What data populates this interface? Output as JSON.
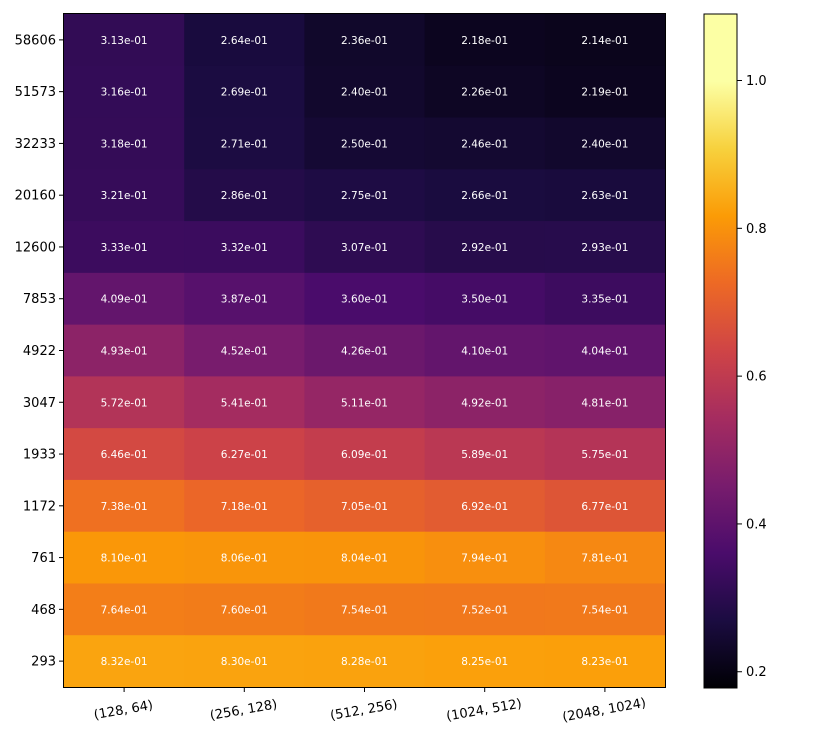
{
  "chart_data": {
    "type": "heatmap",
    "colormap": "inferno",
    "x_categories": [
      "(128, 64)",
      "(256, 128)",
      "(512, 256)",
      "(1024, 512)",
      "(2048, 1024)"
    ],
    "y_categories": [
      "58606",
      "51573",
      "32233",
      "20160",
      "12600",
      "7853",
      "4922",
      "3047",
      "1933",
      "1172",
      "761",
      "468",
      "293"
    ],
    "values": [
      [
        0.313,
        0.264,
        0.236,
        0.218,
        0.214
      ],
      [
        0.316,
        0.269,
        0.24,
        0.226,
        0.219
      ],
      [
        0.318,
        0.271,
        0.25,
        0.246,
        0.24
      ],
      [
        0.321,
        0.286,
        0.275,
        0.266,
        0.263
      ],
      [
        0.333,
        0.332,
        0.307,
        0.292,
        0.293
      ],
      [
        0.409,
        0.387,
        0.36,
        0.35,
        0.335
      ],
      [
        0.493,
        0.452,
        0.426,
        0.41,
        0.404
      ],
      [
        0.572,
        0.541,
        0.511,
        0.492,
        0.481
      ],
      [
        0.646,
        0.627,
        0.609,
        0.589,
        0.575
      ],
      [
        0.738,
        0.718,
        0.705,
        0.692,
        0.677
      ],
      [
        0.81,
        0.806,
        0.804,
        0.794,
        0.781
      ],
      [
        0.764,
        0.76,
        0.754,
        0.752,
        0.754
      ],
      [
        0.832,
        0.83,
        0.828,
        0.825,
        0.823
      ]
    ],
    "labels": [
      [
        "3.13e-01",
        "2.64e-01",
        "2.36e-01",
        "2.18e-01",
        "2.14e-01"
      ],
      [
        "3.16e-01",
        "2.69e-01",
        "2.40e-01",
        "2.26e-01",
        "2.19e-01"
      ],
      [
        "3.18e-01",
        "2.71e-01",
        "2.50e-01",
        "2.46e-01",
        "2.40e-01"
      ],
      [
        "3.21e-01",
        "2.86e-01",
        "2.75e-01",
        "2.66e-01",
        "2.63e-01"
      ],
      [
        "3.33e-01",
        "3.32e-01",
        "3.07e-01",
        "2.92e-01",
        "2.93e-01"
      ],
      [
        "4.09e-01",
        "3.87e-01",
        "3.60e-01",
        "3.50e-01",
        "3.35e-01"
      ],
      [
        "4.93e-01",
        "4.52e-01",
        "4.26e-01",
        "4.10e-01",
        "4.04e-01"
      ],
      [
        "5.72e-01",
        "5.41e-01",
        "5.11e-01",
        "4.92e-01",
        "4.81e-01"
      ],
      [
        "6.46e-01",
        "6.27e-01",
        "6.09e-01",
        "5.89e-01",
        "5.75e-01"
      ],
      [
        "7.38e-01",
        "7.18e-01",
        "7.05e-01",
        "6.92e-01",
        "6.77e-01"
      ],
      [
        "8.10e-01",
        "8.06e-01",
        "8.04e-01",
        "7.94e-01",
        "7.81e-01"
      ],
      [
        "7.64e-01",
        "7.60e-01",
        "7.54e-01",
        "7.52e-01",
        "7.54e-01"
      ],
      [
        "8.32e-01",
        "8.30e-01",
        "8.28e-01",
        "8.25e-01",
        "8.23e-01"
      ]
    ],
    "colorbar": {
      "range": [
        0.178,
        1.09
      ],
      "ticks": [
        0.2,
        0.4,
        0.6,
        0.8,
        1.0
      ],
      "tick_labels": [
        "0.2",
        "0.4",
        "0.6",
        "0.8",
        "1.0"
      ]
    },
    "title": "",
    "xlabel": "",
    "ylabel": "",
    "grid": false
  }
}
